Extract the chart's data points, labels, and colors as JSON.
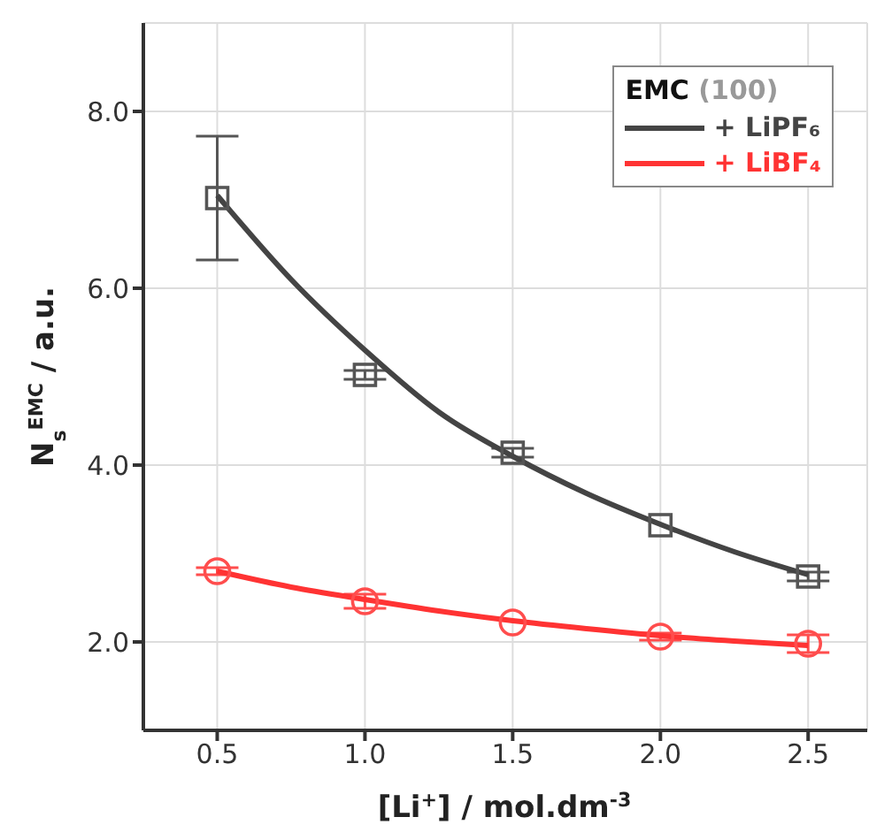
{
  "chart_data": {
    "type": "scatter",
    "xlabel": "[Li$^{+}$]  / mol.dm$^{-3}$",
    "ylabel": "N$_{s}$$^{EMC}$ / a.u.",
    "legend_title": "EMC (100)",
    "legend": "top right",
    "grid": true,
    "xlim": [
      0.25,
      2.7
    ],
    "xticks": [
      0.5,
      {
        "value": 1,
        "label": "1.0"
      },
      1.5,
      {
        "value": 2,
        "label": "2.0"
      },
      2.5
    ],
    "ylim": [
      1,
      9
    ],
    "yticks": [
      {
        "value": 2,
        "label": "2.0"
      },
      {
        "value": 4,
        "label": "4.0"
      },
      {
        "value": 6,
        "label": "6.0"
      },
      {
        "value": 8,
        "label": "8.0"
      }
    ],
    "series": [
      {
        "type": "scatter",
        "color": "#555555",
        "marker": "square",
        "x": [
          0.5,
          1,
          1.5,
          2,
          2.5
        ],
        "values": [
          7.02,
          5.02,
          4.14,
          3.32,
          2.74
        ],
        "errors": [
          0.7,
          0.05,
          0.05,
          null,
          0.05
        ]
      },
      {
        "type": "scatter",
        "color": "#ff4d4d",
        "marker": "circle",
        "x": [
          0.5,
          1,
          1.5,
          2,
          2.5
        ],
        "values": [
          2.8,
          2.46,
          2.22,
          2.06,
          1.98
        ],
        "errors": [
          0.04,
          0.08,
          null,
          0.04,
          0.1
        ]
      },
      {
        "type": "line",
        "name": "+ LiPF₆",
        "color": "#444444",
        "marker": "none",
        "x": [
          0.5,
          0.75,
          1,
          1.25,
          1.5,
          1.75,
          2,
          2.25,
          2.5
        ],
        "values": [
          7.05,
          6.1,
          5.3,
          4.6,
          4.1,
          3.68,
          3.33,
          3.02,
          2.76
        ]
      },
      {
        "type": "line",
        "name": "+ LiBF₄",
        "color": "#ff3333",
        "marker": "none",
        "x": [
          0.5,
          0.75,
          1,
          1.25,
          1.5,
          1.75,
          2,
          2.25,
          2.5
        ],
        "values": [
          2.8,
          2.62,
          2.48,
          2.35,
          2.24,
          2.15,
          2.07,
          2.01,
          1.96
        ]
      }
    ]
  }
}
